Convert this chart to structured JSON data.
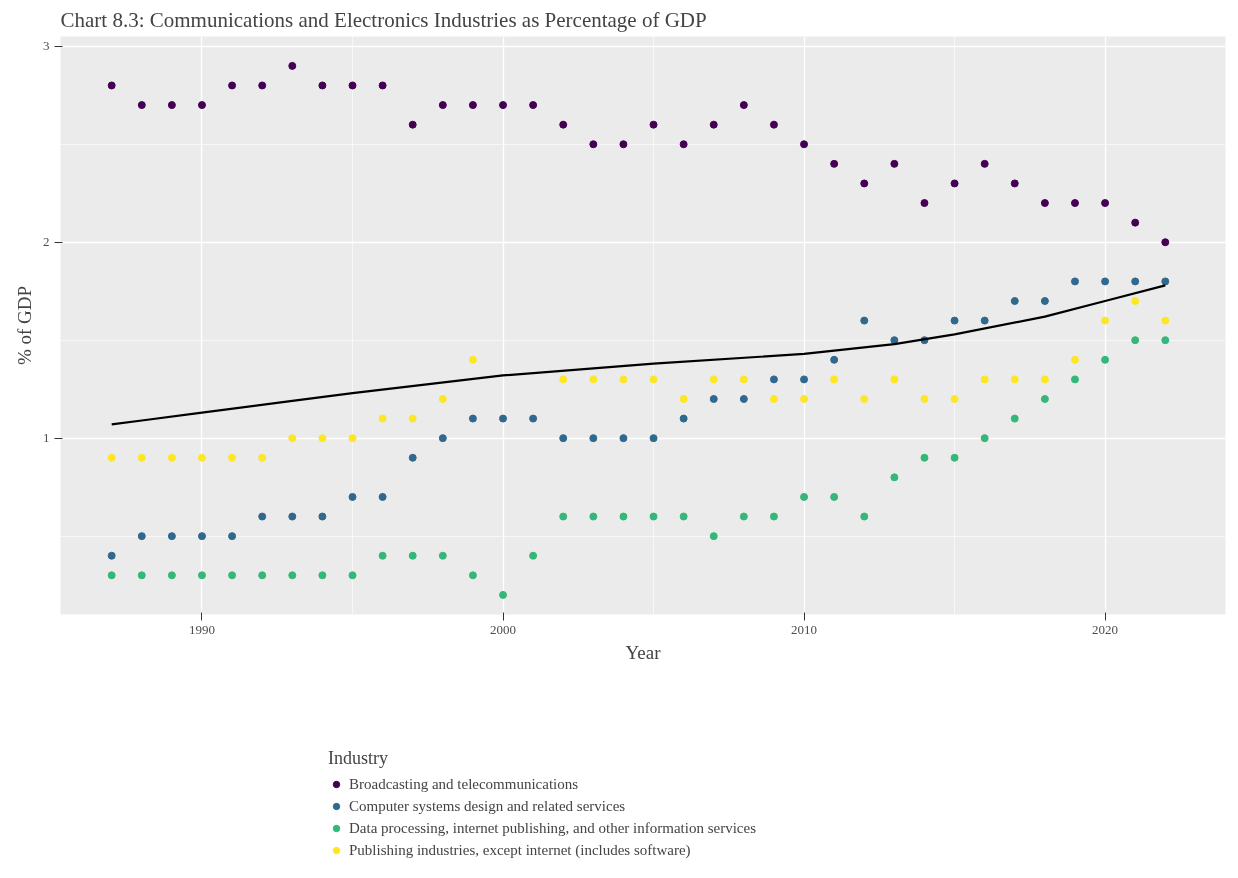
{
  "chart_data": {
    "type": "scatter",
    "title": "Chart 8.3: Communications and Electronics Industries as Percentage of GDP",
    "xlabel": "Year",
    "ylabel": "% of GDP",
    "legend_title": "Industry",
    "x": [
      1987,
      1988,
      1989,
      1990,
      1991,
      1992,
      1993,
      1994,
      1995,
      1996,
      1997,
      1998,
      1999,
      2000,
      2001,
      2002,
      2003,
      2004,
      2005,
      2006,
      2007,
      2008,
      2009,
      2010,
      2011,
      2012,
      2013,
      2014,
      2015,
      2016,
      2017,
      2018,
      2019,
      2020,
      2021,
      2022
    ],
    "series": [
      {
        "name": "Broadcasting and telecommunications",
        "color": "#440154",
        "values": [
          2.8,
          2.7,
          2.7,
          2.7,
          2.8,
          2.8,
          2.9,
          2.8,
          2.8,
          2.8,
          2.6,
          2.7,
          2.7,
          2.7,
          2.7,
          2.6,
          2.5,
          2.5,
          2.6,
          2.5,
          2.6,
          2.7,
          2.6,
          2.5,
          2.4,
          2.3,
          2.4,
          2.2,
          2.3,
          2.4,
          2.3,
          2.2,
          2.2,
          2.2,
          2.1,
          2.0
        ]
      },
      {
        "name": "Computer systems design and related services",
        "color": "#31688e",
        "values": [
          0.4,
          0.5,
          0.5,
          0.5,
          0.5,
          0.6,
          0.6,
          0.6,
          0.7,
          0.7,
          0.9,
          1.0,
          1.1,
          1.1,
          1.1,
          1.0,
          1.0,
          1.0,
          1.0,
          1.1,
          1.2,
          1.2,
          1.3,
          1.3,
          1.4,
          1.6,
          1.5,
          1.5,
          1.6,
          1.6,
          1.7,
          1.7,
          1.8,
          1.8,
          1.8,
          1.8
        ]
      },
      {
        "name": "Data processing, internet publishing, and other information services",
        "color": "#35b779",
        "values": [
          0.3,
          0.3,
          0.3,
          0.3,
          0.3,
          0.3,
          0.3,
          0.3,
          0.3,
          0.4,
          0.4,
          0.4,
          0.3,
          0.2,
          0.4,
          0.6,
          0.6,
          0.6,
          0.6,
          0.6,
          0.5,
          0.6,
          0.6,
          0.7,
          0.7,
          0.6,
          0.8,
          0.9,
          0.9,
          1.0,
          1.1,
          1.2,
          1.3,
          1.4,
          1.5,
          1.5
        ]
      },
      {
        "name": "Publishing industries, except internet (includes software)",
        "color": "#fde725",
        "values": [
          0.9,
          0.9,
          0.9,
          0.9,
          0.9,
          0.9,
          1.0,
          1.0,
          1.0,
          1.1,
          1.1,
          1.2,
          1.4,
          null,
          null,
          1.3,
          1.3,
          1.3,
          1.3,
          1.2,
          1.3,
          1.3,
          1.2,
          1.2,
          1.3,
          1.2,
          1.3,
          1.2,
          1.2,
          1.3,
          1.3,
          1.3,
          1.4,
          1.6,
          1.7,
          1.6
        ]
      },
      {
        "type": "line",
        "marker": "none",
        "color": "#000000",
        "x": [
          1987,
          1988,
          1990,
          1993,
          1995,
          2000,
          2005,
          2010,
          2013,
          2015,
          2018,
          2020,
          2022
        ],
        "values": [
          1.07,
          1.09,
          1.13,
          1.19,
          1.23,
          1.32,
          1.38,
          1.43,
          1.48,
          1.53,
          1.62,
          1.7,
          1.78
        ]
      }
    ],
    "xlim": [
      1985.3,
      2024.0
    ],
    "ylim": [
      0.1,
      3.05
    ],
    "xticks": [
      1990,
      2000,
      2010,
      2020
    ],
    "yticks": [
      1,
      2,
      3
    ],
    "grid": true,
    "legend": "bottom",
    "marker": "circle"
  }
}
